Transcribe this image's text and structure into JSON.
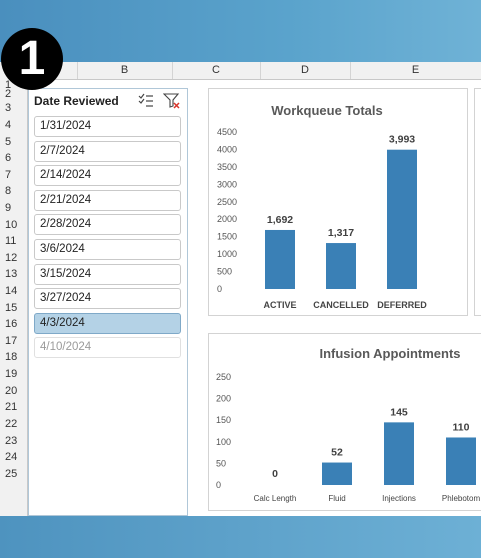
{
  "step_number": "1",
  "spreadsheet": {
    "columns": [
      "B",
      "C",
      "D",
      "E"
    ],
    "rows": [
      "1",
      "2",
      "3",
      "4",
      "5",
      "6",
      "7",
      "8",
      "9",
      "10",
      "11",
      "12",
      "13",
      "14",
      "15",
      "16",
      "17",
      "18",
      "19",
      "20",
      "21",
      "22",
      "23",
      "24",
      "25"
    ]
  },
  "slicer": {
    "title": "Date Reviewed",
    "multiselect_icon": "multi-select-icon",
    "clear_filter_icon": "clear-filter-icon",
    "items": [
      {
        "label": "1/31/2024",
        "state": "normal"
      },
      {
        "label": "2/7/2024",
        "state": "normal"
      },
      {
        "label": "2/14/2024",
        "state": "normal"
      },
      {
        "label": "2/21/2024",
        "state": "normal"
      },
      {
        "label": "2/28/2024",
        "state": "normal"
      },
      {
        "label": "3/6/2024",
        "state": "normal"
      },
      {
        "label": "3/15/2024",
        "state": "normal"
      },
      {
        "label": "3/27/2024",
        "state": "normal"
      },
      {
        "label": "4/3/2024",
        "state": "selected"
      },
      {
        "label": "4/10/2024",
        "state": "no-data"
      }
    ]
  },
  "chart_data": [
    {
      "type": "bar",
      "title": "Workqueue Totals",
      "categories": [
        "ACTIVE",
        "CANCELLED",
        "DEFERRED"
      ],
      "values": [
        1692,
        1317,
        3993
      ],
      "data_labels": [
        "1,692",
        "1,317",
        "3,993"
      ],
      "ylim": [
        0,
        4500
      ],
      "yticks": [
        "4500",
        "4000",
        "3500",
        "3000",
        "2500",
        "2000",
        "1500",
        "1000",
        "500",
        "0"
      ],
      "color": "#3a80b6"
    },
    {
      "type": "bar",
      "title": "Infusion Appointments",
      "categories": [
        "Calc Length",
        "Fluid",
        "Injections",
        "Phlebotom"
      ],
      "values": [
        0,
        52,
        145,
        110
      ],
      "data_labels": [
        "0",
        "52",
        "145",
        "110"
      ],
      "ylim": [
        0,
        250
      ],
      "yticks": [
        "250",
        "200",
        "150",
        "100",
        "50",
        "0"
      ],
      "color": "#3a80b6"
    }
  ]
}
